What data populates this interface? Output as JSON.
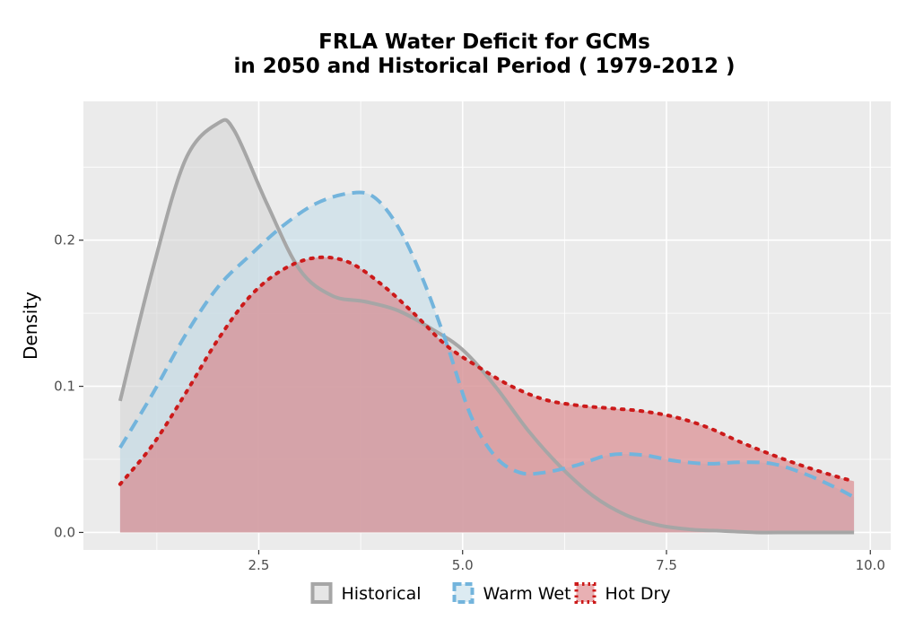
{
  "chart_data": {
    "type": "area",
    "title": "FRLA  Water Deficit for GCMs",
    "subtitle": "in 2050 and Historical Period ( 1979-2012 )",
    "xlabel": "",
    "ylabel": "Density",
    "xlim": [
      0.35,
      10.25
    ],
    "ylim": [
      -0.012,
      0.295
    ],
    "x_ticks": [
      2.5,
      5.0,
      7.5,
      10.0
    ],
    "x_tick_labels": [
      "2.5",
      "5.0",
      "7.5",
      "10.0"
    ],
    "y_ticks": [
      0.0,
      0.1,
      0.2
    ],
    "y_tick_labels": [
      "0.0",
      "0.1",
      "0.2"
    ],
    "grid": true,
    "legend_position": "bottom",
    "series": [
      {
        "name": "Historical",
        "line_color": "#a6a6a6",
        "fill_color": "#d6d6d6",
        "line_style": "solid",
        "x": [
          0.8,
          1.2,
          1.6,
          2.0,
          2.2,
          2.6,
          3.0,
          3.4,
          3.8,
          4.2,
          4.6,
          5.0,
          5.4,
          5.8,
          6.2,
          6.6,
          7.0,
          7.4,
          7.8,
          8.2,
          8.6,
          9.0,
          9.4,
          9.8
        ],
        "y": [
          0.09,
          0.18,
          0.255,
          0.28,
          0.275,
          0.225,
          0.18,
          0.162,
          0.158,
          0.152,
          0.14,
          0.125,
          0.1,
          0.07,
          0.045,
          0.025,
          0.012,
          0.005,
          0.002,
          0.001,
          0.0,
          0.0,
          0.0,
          0.0
        ]
      },
      {
        "name": "Warm Wet",
        "line_color": "#73b4dc",
        "fill_color": "#c4dde9",
        "line_style": "dashed",
        "x": [
          0.8,
          1.2,
          1.6,
          2.0,
          2.4,
          2.8,
          3.2,
          3.6,
          3.9,
          4.2,
          4.5,
          4.8,
          5.1,
          5.4,
          5.7,
          6.0,
          6.4,
          6.8,
          7.2,
          7.6,
          8.0,
          8.4,
          8.8,
          9.2,
          9.6,
          9.8
        ],
        "y": [
          0.058,
          0.095,
          0.135,
          0.168,
          0.19,
          0.21,
          0.225,
          0.232,
          0.23,
          0.21,
          0.175,
          0.13,
          0.08,
          0.052,
          0.041,
          0.041,
          0.046,
          0.053,
          0.053,
          0.049,
          0.047,
          0.048,
          0.047,
          0.04,
          0.03,
          0.024
        ]
      },
      {
        "name": "Hot Dry",
        "line_color": "#cc1a1a",
        "fill_color": "#d97c80",
        "line_style": "dotted",
        "x": [
          0.8,
          1.2,
          1.6,
          2.0,
          2.4,
          2.8,
          3.2,
          3.6,
          4.0,
          4.4,
          4.8,
          5.2,
          5.6,
          6.0,
          6.4,
          6.8,
          7.2,
          7.6,
          8.0,
          8.4,
          8.8,
          9.2,
          9.6,
          9.8
        ],
        "y": [
          0.033,
          0.06,
          0.095,
          0.132,
          0.162,
          0.18,
          0.188,
          0.185,
          0.17,
          0.15,
          0.128,
          0.113,
          0.1,
          0.091,
          0.087,
          0.085,
          0.083,
          0.079,
          0.072,
          0.062,
          0.053,
          0.045,
          0.038,
          0.035
        ]
      }
    ]
  }
}
